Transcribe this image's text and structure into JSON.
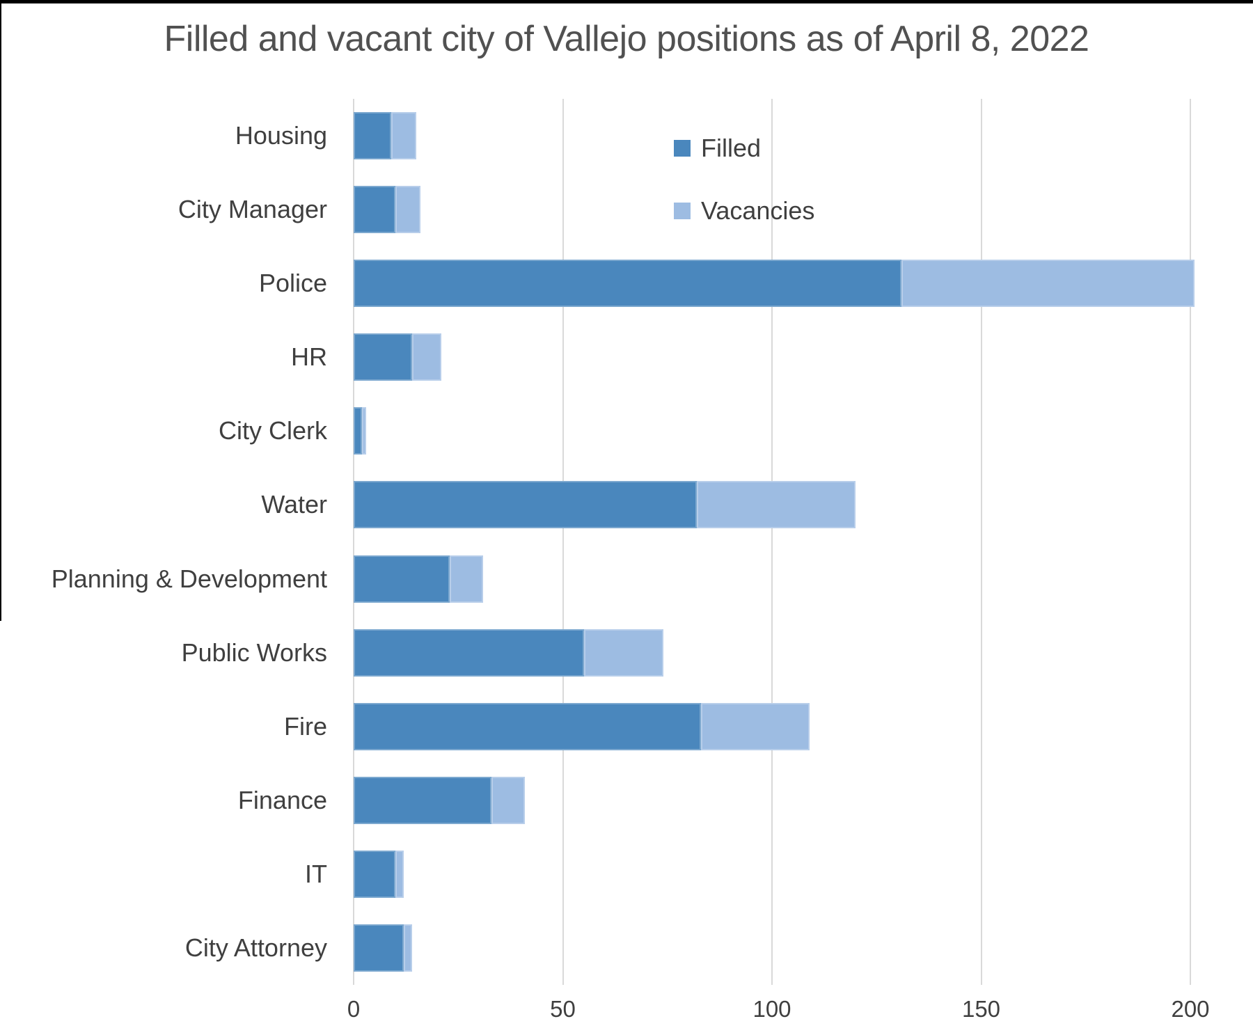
{
  "window": {
    "frame_color": "#000000",
    "bottom_strip_color": "#d8d8d8"
  },
  "colors": {
    "title_text": "#515151",
    "axis_text": "#3f3f3f",
    "gridline": "#d9d9d9",
    "filled_bar": "#4a87bd",
    "vacancies_bar": "#9dbce2"
  },
  "chart_data": {
    "type": "bar",
    "orientation": "horizontal",
    "stacked": true,
    "title": "Filled and vacant city of Vallejo positions as of April 8, 2022",
    "categories": [
      "Housing",
      "City Manager",
      "Police",
      "HR",
      "City Clerk",
      "Water",
      "Planning & Development",
      "Public Works",
      "Fire",
      "Finance",
      "IT",
      "City Attorney"
    ],
    "series": [
      {
        "name": "Filled",
        "color": "#4a87bd",
        "values": [
          9,
          10,
          131,
          14,
          2,
          82,
          23,
          55,
          83,
          33,
          10,
          12
        ]
      },
      {
        "name": "Vacancies",
        "color": "#9dbce2",
        "values": [
          6,
          6,
          70,
          7,
          1,
          38,
          8,
          19,
          26,
          8,
          2,
          2
        ]
      }
    ],
    "totals": [
      15,
      16,
      201,
      21,
      3,
      120,
      31,
      74,
      109,
      41,
      12,
      14
    ],
    "x_axis": {
      "min": 0,
      "max": 200,
      "ticks": [
        0,
        50,
        100,
        150,
        200
      ],
      "tick_labels": [
        "0",
        "50",
        "100",
        "150",
        "200"
      ]
    },
    "grid": "vertical",
    "legend_position": "top-center",
    "legend_entries": [
      "Filled",
      "Vacancies"
    ]
  }
}
